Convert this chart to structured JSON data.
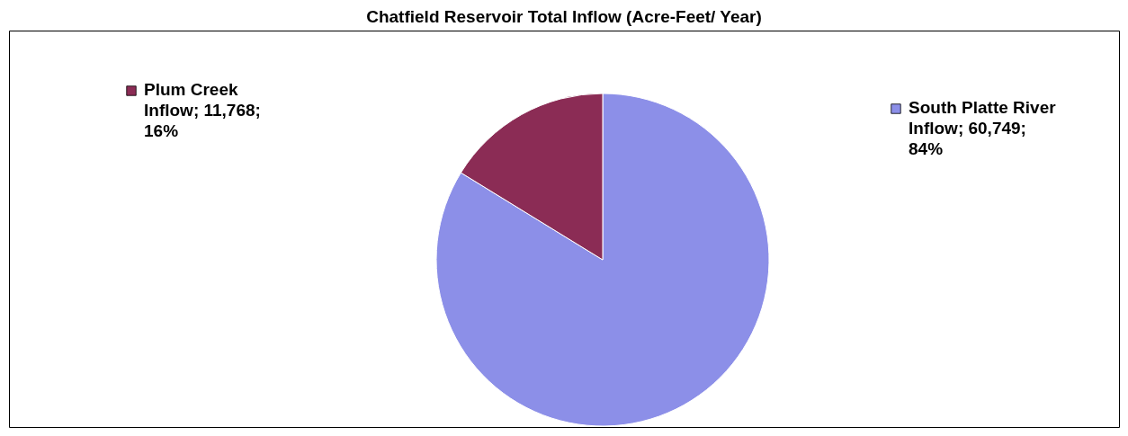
{
  "chart_data": {
    "type": "pie",
    "title": "Chatfield Reservoir Total Inflow (Acre-Feet/ Year)",
    "categories": [
      "South Platte River Inflow",
      "Plum Creek Inflow"
    ],
    "values": [
      60749,
      11768
    ],
    "colors": [
      "#8c8fe8",
      "#8b2c55"
    ],
    "value_labels": [
      "60,749; 84%",
      "11,768; 16%"
    ],
    "legend": "top"
  }
}
